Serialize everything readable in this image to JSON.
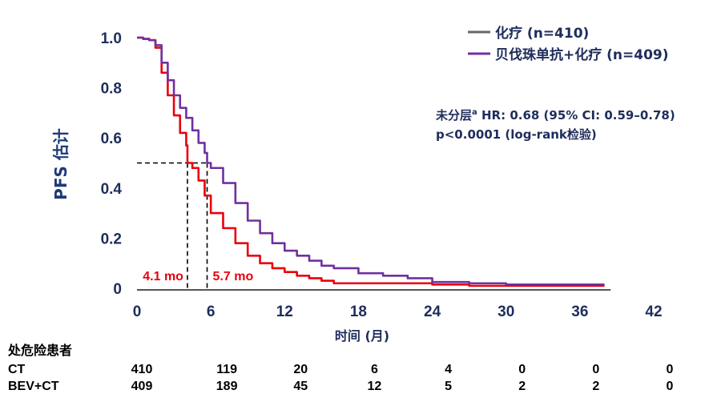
{
  "chart_data": {
    "type": "line",
    "title": "",
    "xlabel": "时间 (月)",
    "ylabel": "PFS 估计",
    "xlim": [
      0,
      42
    ],
    "ylim": [
      0,
      1.0
    ],
    "x_ticks": [
      0,
      6,
      12,
      18,
      24,
      30,
      36,
      42
    ],
    "y_ticks": [
      0,
      0.2,
      0.4,
      0.6,
      0.8,
      1.0
    ],
    "y_tick_labels": [
      "0",
      "0.2",
      "0.4",
      "0.6",
      "0.8",
      "1.0"
    ],
    "legend_position": "top-right",
    "series": [
      {
        "name": "化疗 (n=410)",
        "color": "#e8000b",
        "legend_color": "#666666",
        "points": [
          [
            0,
            1.0
          ],
          [
            0.5,
            0.995
          ],
          [
            1.0,
            0.99
          ],
          [
            1.5,
            0.96
          ],
          [
            2.0,
            0.86
          ],
          [
            2.5,
            0.77
          ],
          [
            3.0,
            0.69
          ],
          [
            3.5,
            0.62
          ],
          [
            4.0,
            0.57
          ],
          [
            4.1,
            0.5
          ],
          [
            4.5,
            0.48
          ],
          [
            5.0,
            0.43
          ],
          [
            5.5,
            0.37
          ],
          [
            6.0,
            0.3
          ],
          [
            7.0,
            0.24
          ],
          [
            8.0,
            0.18
          ],
          [
            9.0,
            0.13
          ],
          [
            10.0,
            0.1
          ],
          [
            11.0,
            0.08
          ],
          [
            12.0,
            0.065
          ],
          [
            13.0,
            0.05
          ],
          [
            14.0,
            0.04
          ],
          [
            15.0,
            0.03
          ],
          [
            16.0,
            0.02
          ],
          [
            18.0,
            0.02
          ],
          [
            20.0,
            0.02
          ],
          [
            22.0,
            0.02
          ],
          [
            24.0,
            0.015
          ],
          [
            27.0,
            0.01
          ],
          [
            30.0,
            0.01
          ],
          [
            33.0,
            0.01
          ],
          [
            36.0,
            0.01
          ],
          [
            38.0,
            0.01
          ]
        ]
      },
      {
        "name": "贝伐珠单抗+化疗 (n=409)",
        "color": "#7030a0",
        "legend_color": "#7030a0",
        "points": [
          [
            0,
            1.0
          ],
          [
            0.5,
            0.995
          ],
          [
            1.0,
            0.99
          ],
          [
            1.5,
            0.97
          ],
          [
            2.0,
            0.9
          ],
          [
            2.5,
            0.83
          ],
          [
            3.0,
            0.77
          ],
          [
            3.5,
            0.72
          ],
          [
            4.0,
            0.68
          ],
          [
            4.5,
            0.63
          ],
          [
            5.0,
            0.58
          ],
          [
            5.5,
            0.54
          ],
          [
            5.7,
            0.5
          ],
          [
            6.0,
            0.48
          ],
          [
            7.0,
            0.42
          ],
          [
            8.0,
            0.34
          ],
          [
            9.0,
            0.27
          ],
          [
            10.0,
            0.22
          ],
          [
            11.0,
            0.18
          ],
          [
            12.0,
            0.15
          ],
          [
            13.0,
            0.13
          ],
          [
            14.0,
            0.11
          ],
          [
            15.0,
            0.09
          ],
          [
            16.0,
            0.08
          ],
          [
            18.0,
            0.06
          ],
          [
            20.0,
            0.05
          ],
          [
            22.0,
            0.04
          ],
          [
            24.0,
            0.025
          ],
          [
            27.0,
            0.02
          ],
          [
            30.0,
            0.015
          ],
          [
            33.0,
            0.015
          ],
          [
            36.0,
            0.015
          ],
          [
            38.0,
            0.015
          ]
        ]
      }
    ],
    "median_lines": [
      {
        "x": 4.1,
        "label": "4.1 mo"
      },
      {
        "x": 5.7,
        "label": "5.7 mo"
      }
    ],
    "median_y": 0.5,
    "annotation": {
      "line1_prefix": "未分层",
      "line1_sup": "a",
      "line1_rest": " HR: 0.68 (95% CI: 0.59–0.78)",
      "line2": "p<0.0001 (log-rank检验)"
    },
    "risk_table": {
      "title": "处危险患者",
      "rows": [
        {
          "label": "CT",
          "values": [
            "410",
            "119",
            "20",
            "6",
            "4",
            "0",
            "0",
            "0"
          ]
        },
        {
          "label": "BEV+CT",
          "values": [
            "409",
            "189",
            "45",
            "12",
            "5",
            "2",
            "2",
            "0"
          ]
        }
      ]
    }
  }
}
